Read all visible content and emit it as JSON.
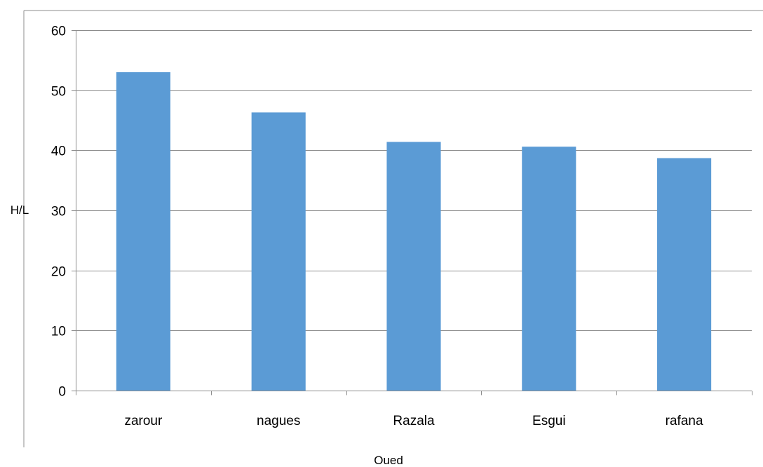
{
  "chart_data": {
    "type": "bar",
    "title": "",
    "xlabel": "Oued",
    "ylabel": "H/L",
    "categories": [
      "zarour",
      "nagues",
      "Razala",
      "Esgui",
      "rafana"
    ],
    "values": [
      53.0,
      46.3,
      41.4,
      40.6,
      38.7
    ],
    "ylim": [
      0,
      60
    ],
    "yticks": [
      0,
      10,
      20,
      30,
      40,
      50,
      60
    ],
    "grid": true,
    "legend": "none",
    "bar_color": "#5b9bd5",
    "grid_color": "#8c8c8c",
    "axis_color": "#8c8c8c"
  }
}
